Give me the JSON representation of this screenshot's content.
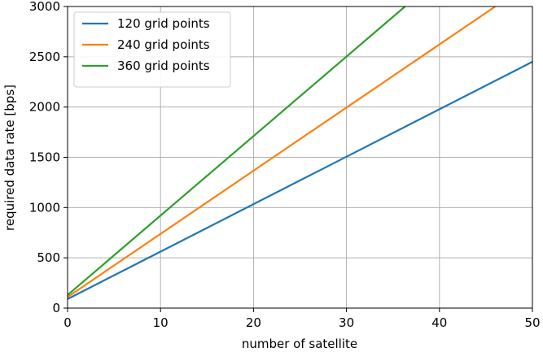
{
  "chart_data": {
    "type": "line",
    "xlabel": "number of satellite",
    "ylabel": "required data rate [bps]",
    "xlim": [
      0,
      50
    ],
    "ylim": [
      0,
      3000
    ],
    "xticks": [
      0,
      10,
      20,
      30,
      40,
      50
    ],
    "yticks": [
      0,
      500,
      1000,
      1500,
      2000,
      2500,
      3000
    ],
    "grid": true,
    "legend_position": "top-left",
    "series": [
      {
        "name": "120 grid points",
        "color": "#1f77b4",
        "x": [
          0,
          50
        ],
        "y": [
          90,
          2450
        ]
      },
      {
        "name": "240 grid points",
        "color": "#ff7f0e",
        "x": [
          0,
          46
        ],
        "y": [
          110,
          3000
        ]
      },
      {
        "name": "360 grid points",
        "color": "#2ca02c",
        "x": [
          0,
          36.3
        ],
        "y": [
          130,
          3000
        ]
      }
    ]
  }
}
